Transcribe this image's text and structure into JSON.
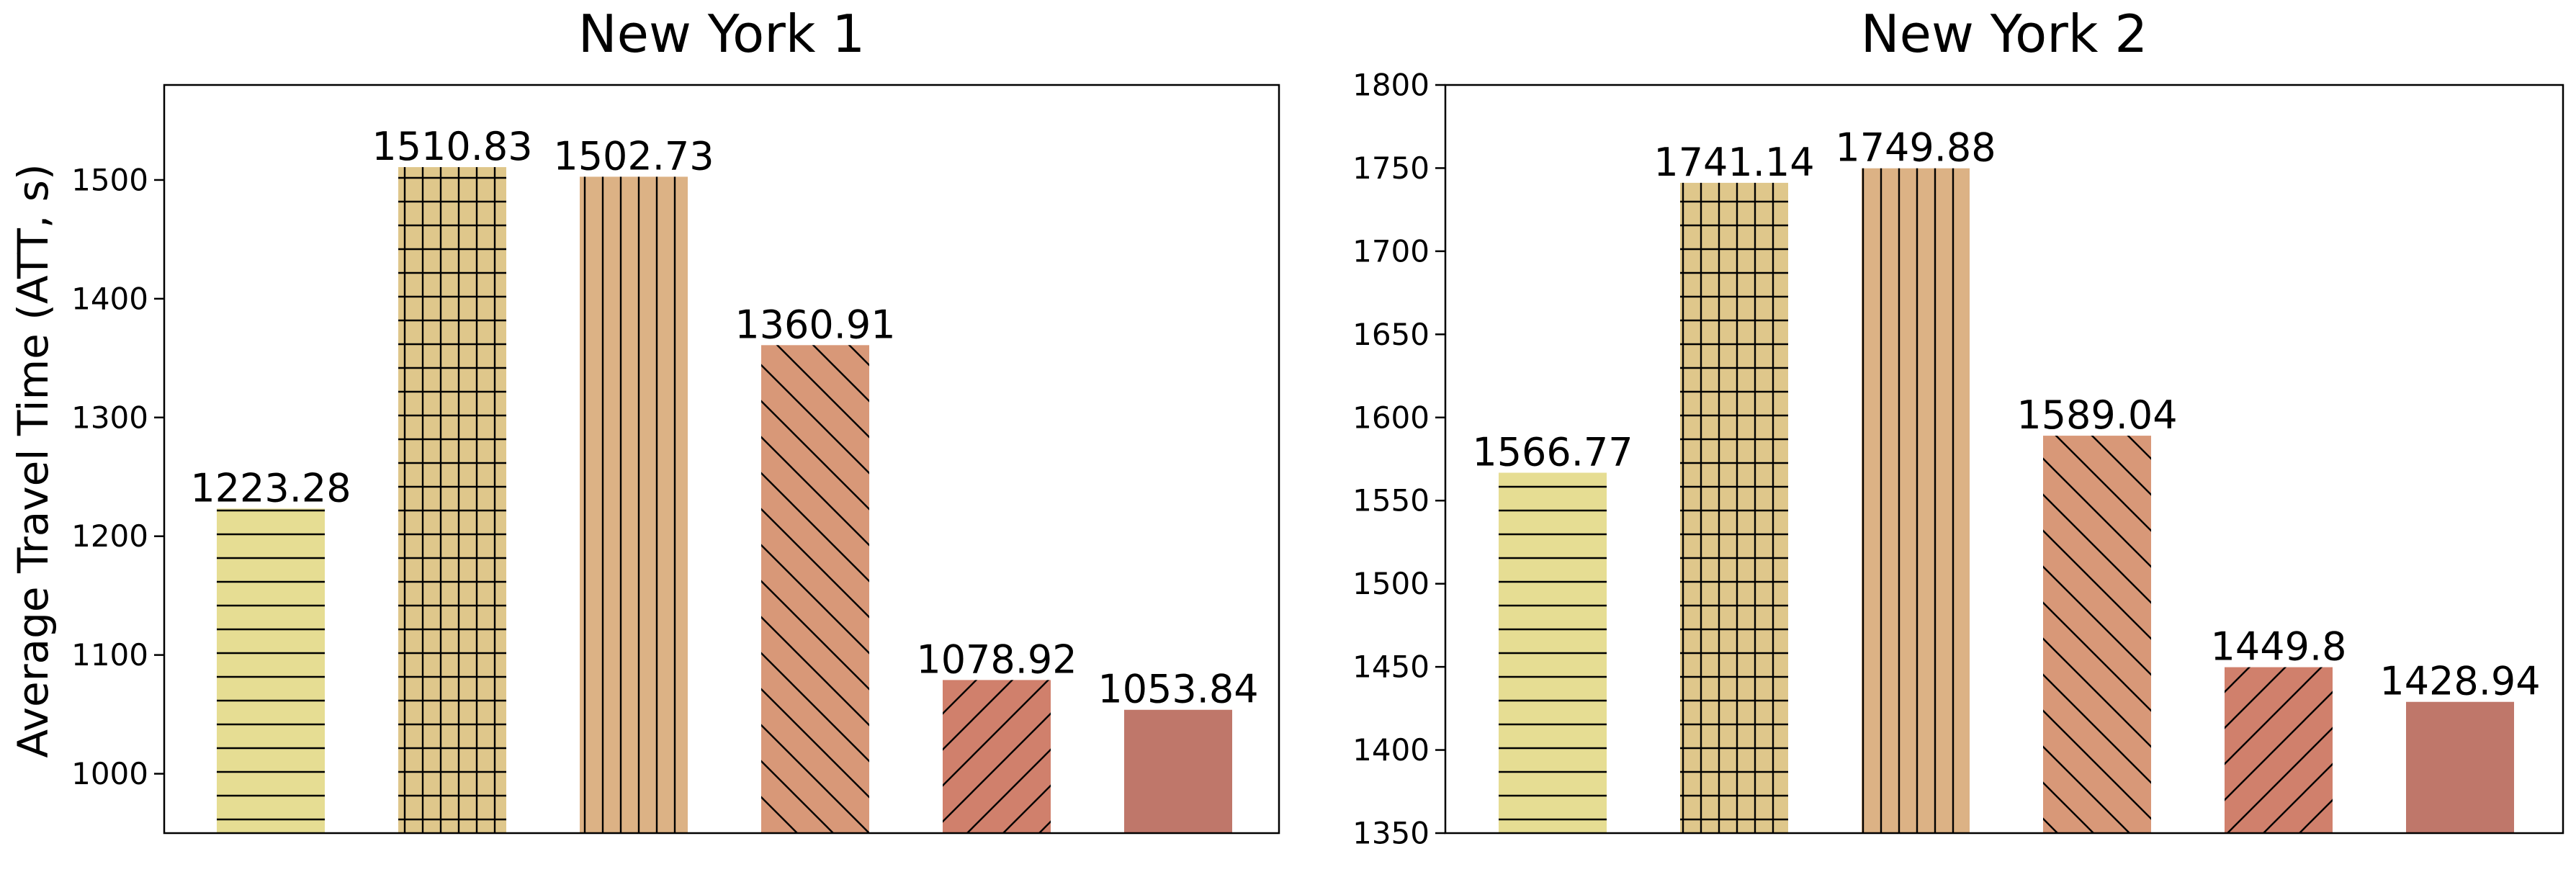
{
  "ylabel": "Average Travel Time (ATT, s)",
  "chart_data": [
    {
      "type": "bar",
      "title": "New York 1",
      "categories": [
        "",
        "",
        "",
        "",
        "",
        ""
      ],
      "values": [
        1223.28,
        1510.83,
        1502.73,
        1360.91,
        1078.92,
        1053.84
      ],
      "value_labels": [
        "1223.28",
        "1510.83",
        "1502.73",
        "1360.91",
        "1078.92",
        "1053.84"
      ],
      "ylabel": "Average Travel Time (ATT, s)",
      "ylim": [
        950,
        1580
      ],
      "yticks": [
        1000,
        1100,
        1200,
        1300,
        1400,
        1500
      ],
      "grid": false
    },
    {
      "type": "bar",
      "title": "New York 2",
      "categories": [
        "",
        "",
        "",
        "",
        "",
        ""
      ],
      "values": [
        1566.77,
        1741.14,
        1749.88,
        1589.04,
        1449.8,
        1428.94
      ],
      "value_labels": [
        "1566.77",
        "1741.14",
        "1749.88",
        "1589.04",
        "1449.8",
        "1428.94"
      ],
      "ylabel": "",
      "ylim": [
        1350,
        1800
      ],
      "yticks": [
        1350,
        1400,
        1450,
        1500,
        1550,
        1600,
        1650,
        1700,
        1750,
        1800
      ],
      "grid": false
    }
  ],
  "bar_styles": [
    {
      "color": "#e6dd93",
      "hatch": "horizontal"
    },
    {
      "color": "#dfc78b",
      "hatch": "grid"
    },
    {
      "color": "#dcb285",
      "hatch": "vertical"
    },
    {
      "color": "#d89878",
      "hatch": "backslash"
    },
    {
      "color": "#d0806c",
      "hatch": "slash"
    },
    {
      "color": "#bf776a",
      "hatch": "none"
    }
  ]
}
